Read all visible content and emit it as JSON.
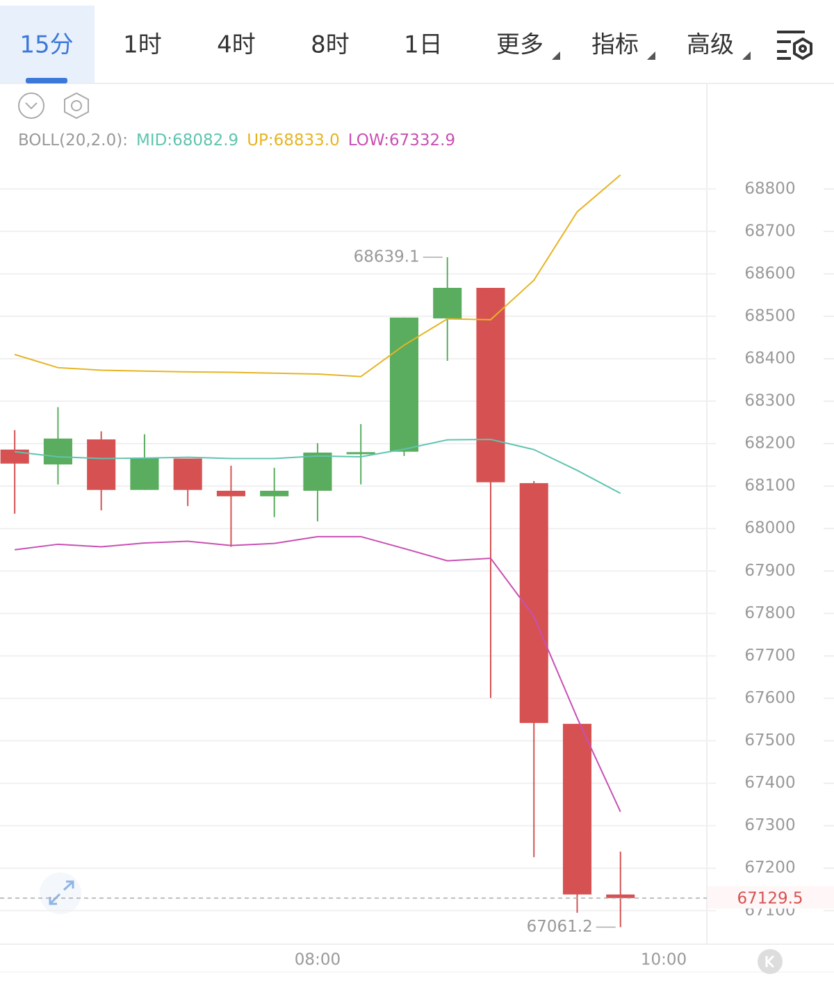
{
  "tabs": [
    {
      "label": "15分",
      "selected": true
    },
    {
      "label": "1时"
    },
    {
      "label": "4时"
    },
    {
      "label": "8时"
    },
    {
      "label": "1日"
    },
    {
      "label": "更多",
      "dropdown": true
    },
    {
      "label": "指标",
      "dropdown": true
    },
    {
      "label": "高级",
      "dropdown": true
    }
  ],
  "chart_data": {
    "type": "candlestick",
    "indicator": "BOLL(20,2.0):",
    "x": [
      6.25,
      6.5,
      6.75,
      7,
      7.25,
      7.5,
      7.75,
      8,
      8.25,
      8.5,
      8.75,
      9,
      9.25,
      9.5,
      9.75
    ],
    "open": [
      68186,
      68151,
      68210,
      68091,
      68165,
      68089,
      68076,
      68089,
      68176,
      68181,
      68495,
      68567,
      68107,
      67540,
      67138
    ],
    "high": [
      68232,
      68286,
      68229,
      68222,
      68165,
      68148,
      68143,
      68201,
      68246,
      68497,
      68639.1,
      68567,
      68112,
      67540,
      67239
    ],
    "low": [
      68035,
      68104,
      68043,
      68091,
      68053,
      67957,
      68027,
      68017,
      68104,
      68171,
      68395,
      67601,
      67226,
      67095,
      67061.2
    ],
    "close": [
      68153,
      68212,
      68091,
      68165,
      68091,
      68076,
      68089,
      68179,
      68180,
      68497,
      68567,
      68109,
      67542,
      67138,
      67129.5
    ],
    "up_color": "#5aad5e",
    "down_color": "#d65252",
    "series": [
      {
        "name": "MID:",
        "reading": "68082.9",
        "color": "#5fc4b0",
        "values": [
          68181,
          68169,
          68165,
          68166,
          68168,
          68165,
          68165,
          68171,
          68169,
          68187,
          68209,
          68210,
          68186,
          68137,
          68082.9
        ]
      },
      {
        "name": "UP:",
        "reading": "68833.0",
        "color": "#e6b422",
        "values": [
          68410,
          68379,
          68373,
          68371,
          68369,
          68368,
          68366,
          68364,
          68358,
          68432,
          68494,
          68492,
          68585,
          68746,
          68833
        ]
      },
      {
        "name": "LOW:",
        "reading": "67332.9",
        "color": "#c94fb3",
        "values": [
          67950,
          67963,
          67957,
          67966,
          67970,
          67960,
          67965,
          67981,
          67981,
          67953,
          67924,
          67930,
          67793,
          67554,
          67332.9
        ]
      }
    ],
    "xlim": [
      6.165,
      10.249
    ],
    "xticks": [
      {
        "value": 8,
        "label": "08:00"
      },
      {
        "value": 10,
        "label": "10:00"
      }
    ],
    "ylim": [
      67021,
      68852
    ],
    "yticks": [
      67100,
      67200,
      67300,
      67400,
      67500,
      67600,
      67700,
      67800,
      67900,
      68000,
      68100,
      68200,
      68300,
      68400,
      68500,
      68600,
      68700,
      68800
    ],
    "grid": true
  }
}
